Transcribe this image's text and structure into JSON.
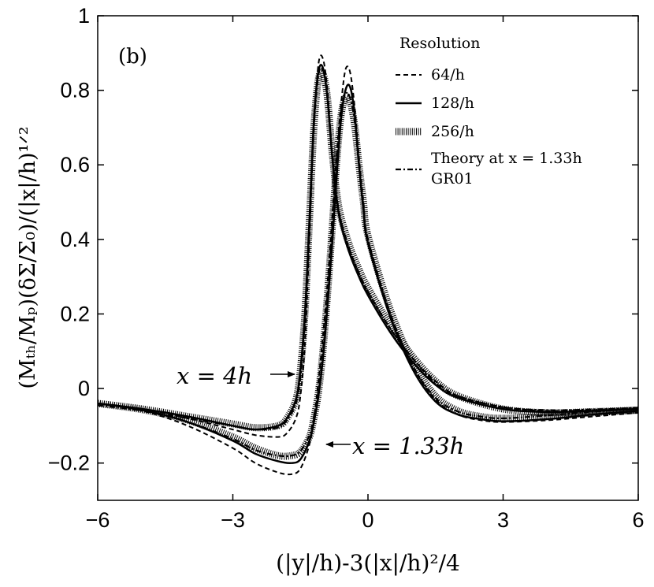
{
  "chart_data": {
    "type": "line",
    "panel_label": "(b)",
    "xlabel": "(|y|/h)-3(|x|/h)²/4",
    "ylabel": "(Mₜₕ/Mₚ)(δΣ/Σ₀)/(|x|/h)¹ᐟ²",
    "xlim": [
      -6,
      6
    ],
    "ylim": [
      -0.3,
      1.0
    ],
    "xticks": [
      -6,
      -3,
      0,
      3,
      6
    ],
    "xtick_labels": [
      "−6",
      "−3",
      "0",
      "3",
      "6"
    ],
    "yticks": [
      -0.2,
      0,
      0.2,
      0.4,
      0.6,
      0.8,
      1.0
    ],
    "ytick_labels": [
      "−0.2",
      "0",
      "0.2",
      "0.4",
      "0.6",
      "0.8",
      "1"
    ],
    "legend": {
      "title": "Resolution",
      "entries": [
        {
          "style": "dashed",
          "label": "64/h"
        },
        {
          "style": "solid",
          "label": "128/h"
        },
        {
          "style": "hatched",
          "label": "256/h"
        },
        {
          "style": "dashdot",
          "label": "Theory at x = 1.33h",
          "label2": "GR01"
        }
      ]
    },
    "annotations": [
      {
        "text": "x = 4h"
      },
      {
        "text": "x = 1.33h"
      }
    ],
    "series": [
      {
        "name": "64/h, x=4h",
        "style": "dashed",
        "x": [
          -6,
          -5,
          -4,
          -3,
          -2.5,
          -2,
          -1.8,
          -1.6,
          -1.5,
          -1.4,
          -1.3,
          -1.2,
          -1.1,
          -1.0,
          -0.9,
          -0.8,
          -0.7,
          -0.6,
          -0.4,
          -0.2,
          0,
          0.5,
          1,
          1.5,
          2,
          3,
          4,
          5,
          6
        ],
        "y": [
          -0.04,
          -0.055,
          -0.08,
          -0.11,
          -0.125,
          -0.13,
          -0.12,
          -0.08,
          -0.02,
          0.12,
          0.4,
          0.7,
          0.87,
          0.885,
          0.8,
          0.64,
          0.52,
          0.45,
          0.37,
          0.31,
          0.26,
          0.16,
          0.08,
          0.02,
          -0.02,
          -0.05,
          -0.06,
          -0.058,
          -0.055
        ]
      },
      {
        "name": "128/h, x=4h",
        "style": "solid",
        "x": [
          -6,
          -5,
          -4,
          -3,
          -2.5,
          -2,
          -1.8,
          -1.6,
          -1.5,
          -1.4,
          -1.3,
          -1.2,
          -1.1,
          -1.0,
          -0.9,
          -0.8,
          -0.7,
          -0.6,
          -0.4,
          -0.2,
          0,
          0.5,
          1,
          1.5,
          2,
          3,
          4,
          5,
          6
        ],
        "y": [
          -0.04,
          -0.055,
          -0.075,
          -0.1,
          -0.11,
          -0.1,
          -0.08,
          -0.03,
          0.05,
          0.2,
          0.45,
          0.72,
          0.85,
          0.86,
          0.78,
          0.63,
          0.51,
          0.44,
          0.36,
          0.3,
          0.25,
          0.15,
          0.07,
          0.01,
          -0.025,
          -0.055,
          -0.063,
          -0.06,
          -0.055
        ]
      },
      {
        "name": "256/h, x=4h",
        "style": "hatched",
        "x": [
          -6,
          -5,
          -4,
          -3,
          -2.5,
          -2,
          -1.8,
          -1.6,
          -1.5,
          -1.4,
          -1.3,
          -1.2,
          -1.1,
          -1.0,
          -0.9,
          -0.8,
          -0.7,
          -0.6,
          -0.4,
          -0.2,
          0,
          0.5,
          1,
          1.5,
          2,
          3,
          4,
          5,
          6
        ],
        "y": [
          -0.04,
          -0.055,
          -0.075,
          -0.095,
          -0.105,
          -0.1,
          -0.08,
          -0.03,
          0.05,
          0.2,
          0.45,
          0.7,
          0.83,
          0.845,
          0.78,
          0.64,
          0.53,
          0.46,
          0.38,
          0.32,
          0.27,
          0.17,
          0.085,
          0.02,
          -0.02,
          -0.055,
          -0.065,
          -0.062,
          -0.058
        ]
      },
      {
        "name": "64/h, x=1.33h",
        "style": "dashed",
        "x": [
          -6,
          -5,
          -4,
          -3,
          -2.5,
          -2,
          -1.7,
          -1.5,
          -1.3,
          -1.2,
          -1.1,
          -1.0,
          -0.9,
          -0.8,
          -0.7,
          -0.6,
          -0.5,
          -0.4,
          -0.3,
          -0.2,
          -0.1,
          0,
          0.5,
          1,
          1.5,
          2,
          2.5,
          3,
          4,
          5,
          6
        ],
        "y": [
          -0.04,
          -0.06,
          -0.1,
          -0.16,
          -0.2,
          -0.225,
          -0.23,
          -0.215,
          -0.15,
          -0.08,
          0.02,
          0.14,
          0.28,
          0.45,
          0.62,
          0.76,
          0.855,
          0.85,
          0.76,
          0.62,
          0.5,
          0.4,
          0.2,
          0.06,
          -0.03,
          -0.07,
          -0.085,
          -0.09,
          -0.085,
          -0.075,
          -0.065
        ]
      },
      {
        "name": "128/h, x=1.33h",
        "style": "solid",
        "x": [
          -6,
          -5,
          -4,
          -3,
          -2.5,
          -2,
          -1.7,
          -1.5,
          -1.3,
          -1.2,
          -1.1,
          -1.0,
          -0.9,
          -0.8,
          -0.7,
          -0.6,
          -0.5,
          -0.4,
          -0.3,
          -0.2,
          -0.1,
          0,
          0.5,
          1,
          1.5,
          2,
          2.5,
          3,
          4,
          5,
          6
        ],
        "y": [
          -0.04,
          -0.058,
          -0.09,
          -0.14,
          -0.175,
          -0.195,
          -0.2,
          -0.19,
          -0.14,
          -0.09,
          -0.02,
          0.08,
          0.22,
          0.38,
          0.56,
          0.72,
          0.8,
          0.81,
          0.74,
          0.6,
          0.48,
          0.39,
          0.19,
          0.05,
          -0.035,
          -0.07,
          -0.082,
          -0.088,
          -0.082,
          -0.07,
          -0.06
        ]
      },
      {
        "name": "256/h, x=1.33h",
        "style": "hatched",
        "x": [
          -6,
          -5,
          -4,
          -3,
          -2.5,
          -2,
          -1.7,
          -1.5,
          -1.3,
          -1.2,
          -1.1,
          -1.0,
          -0.9,
          -0.8,
          -0.7,
          -0.6,
          -0.5,
          -0.4,
          -0.3,
          -0.2,
          -0.1,
          0,
          0.5,
          1,
          1.5,
          2,
          2.5,
          3,
          4,
          5,
          6
        ],
        "y": [
          -0.04,
          -0.057,
          -0.085,
          -0.13,
          -0.16,
          -0.18,
          -0.18,
          -0.17,
          -0.13,
          -0.08,
          -0.01,
          0.1,
          0.25,
          0.42,
          0.6,
          0.73,
          0.78,
          0.77,
          0.71,
          0.6,
          0.5,
          0.41,
          0.21,
          0.07,
          -0.02,
          -0.06,
          -0.075,
          -0.08,
          -0.075,
          -0.065,
          -0.058
        ]
      },
      {
        "name": "Theory x=4h",
        "style": "dashdot",
        "x": [
          -6,
          -5,
          -4,
          -3,
          -2.5,
          -2,
          -1.8,
          -1.6,
          -1.5,
          -1.4,
          -1.3,
          -1.2,
          -1.1,
          -1.0,
          -0.9,
          -0.8,
          -0.7,
          -0.6,
          -0.4,
          -0.2,
          0,
          0.5,
          1,
          1.5,
          2,
          3,
          4,
          5,
          6
        ],
        "y": [
          -0.045,
          -0.06,
          -0.08,
          -0.1,
          -0.11,
          -0.105,
          -0.085,
          -0.04,
          0.03,
          0.18,
          0.43,
          0.7,
          0.84,
          0.855,
          0.78,
          0.63,
          0.52,
          0.45,
          0.37,
          0.31,
          0.26,
          0.16,
          0.08,
          0.015,
          -0.02,
          -0.05,
          -0.058,
          -0.056,
          -0.052
        ]
      },
      {
        "name": "Theory x=1.33h",
        "style": "dashdot",
        "x": [
          -6,
          -5,
          -4,
          -3,
          -2.5,
          -2,
          -1.7,
          -1.5,
          -1.3,
          -1.2,
          -1.1,
          -1.0,
          -0.9,
          -0.8,
          -0.7,
          -0.6,
          -0.5,
          -0.4,
          -0.3,
          -0.2,
          -0.1,
          0,
          0.5,
          1,
          1.5,
          2,
          2.5,
          3,
          4,
          5,
          6
        ],
        "y": [
          -0.045,
          -0.06,
          -0.09,
          -0.135,
          -0.165,
          -0.18,
          -0.18,
          -0.168,
          -0.125,
          -0.075,
          -0.005,
          0.1,
          0.25,
          0.42,
          0.6,
          0.74,
          0.79,
          0.78,
          0.72,
          0.6,
          0.49,
          0.4,
          0.2,
          0.06,
          -0.025,
          -0.062,
          -0.075,
          -0.08,
          -0.072,
          -0.062,
          -0.055
        ]
      }
    ]
  }
}
